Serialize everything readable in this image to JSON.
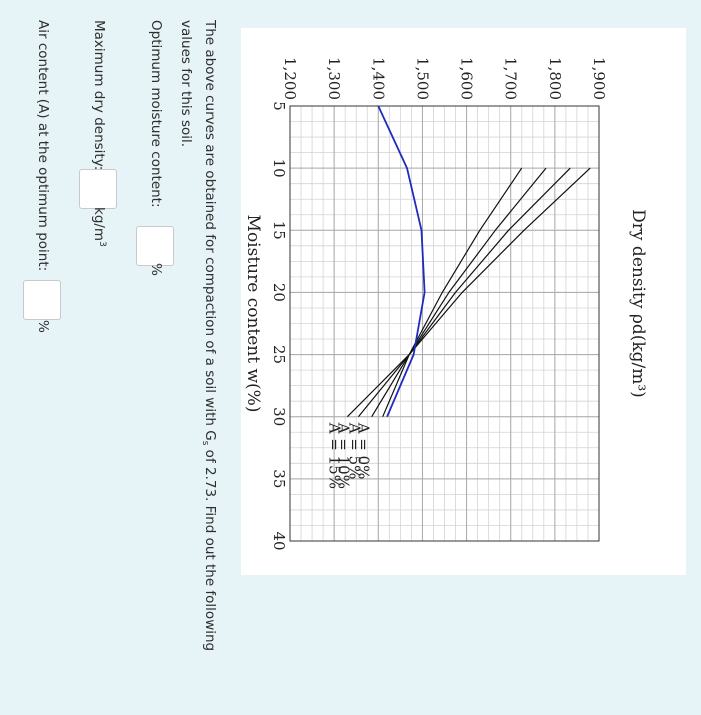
{
  "chart_data": {
    "type": "line",
    "xlabel": "Moisture content w(%)",
    "ylabel": "Dry density ρd(kg/m³)",
    "xlim": [
      5,
      40
    ],
    "ylim": [
      1200,
      1900
    ],
    "x_ticks": [
      "5",
      "10",
      "15",
      "20",
      "25",
      "30",
      "35",
      "40"
    ],
    "y_ticks": [
      "1,200",
      "1,300",
      "1,400",
      "1,500",
      "1,600",
      "1,700",
      "1,800",
      "1,900"
    ],
    "grid": true,
    "series": [
      {
        "name": "A = 0%",
        "color": "#111111",
        "x": [
          10,
          15,
          20,
          25,
          30
        ],
        "y": [
          1725,
          1630,
          1545,
          1470,
          1410
        ]
      },
      {
        "name": "A = 5%",
        "color": "#111111",
        "x": [
          10,
          15,
          20,
          25,
          30
        ],
        "y": [
          1780,
          1665,
          1560,
          1470,
          1385
        ]
      },
      {
        "name": "A = 10%",
        "color": "#111111",
        "x": [
          10,
          15,
          20,
          25,
          30
        ],
        "y": [
          1835,
          1695,
          1575,
          1470,
          1355
        ]
      },
      {
        "name": "A = 15%",
        "color": "#111111",
        "x": [
          10,
          15,
          20,
          25,
          30
        ],
        "y": [
          1880,
          1730,
          1590,
          1470,
          1330
        ]
      },
      {
        "name": "",
        "color": "#1f2bbf",
        "x": [
          5,
          10,
          15,
          20,
          25,
          30
        ],
        "y": [
          1400,
          1465,
          1498,
          1505,
          1480,
          1420
        ]
      }
    ]
  },
  "question": {
    "text_before": "The above curves are obtained for compaction of a soil with G",
    "text_sub": "s",
    "text_after": " of 2.73. Find out the following values for this soil.",
    "opt_label": "Optimum moisture content:",
    "opt_unit": "%",
    "mdd_label": "Maximum dry density:",
    "mdd_unit": "kg/m",
    "mdd_unit_sup": "3",
    "air_label": "Air content (A) at the optimum point:",
    "air_unit": "%"
  }
}
